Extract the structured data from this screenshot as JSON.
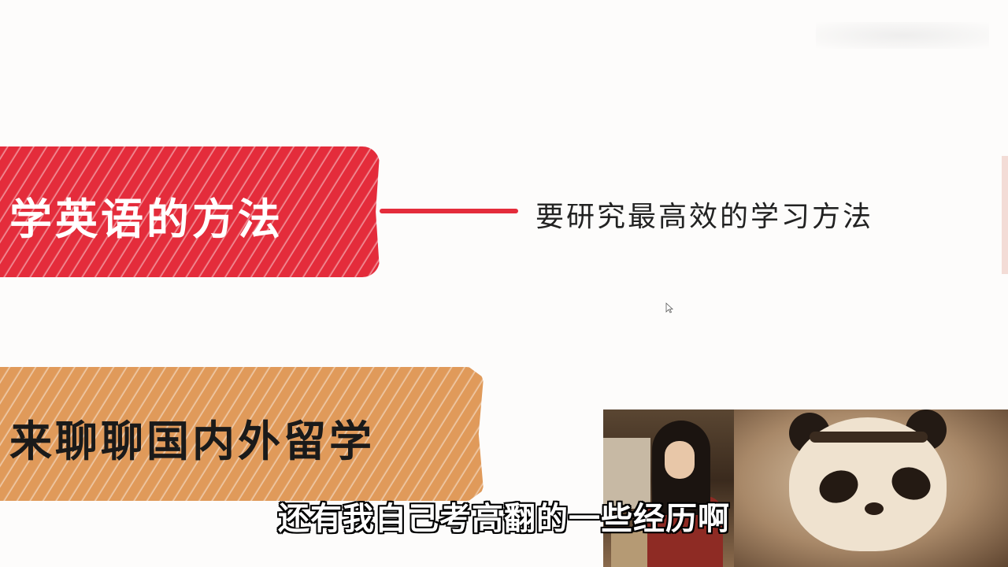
{
  "slide": {
    "topic_primary": "学英语的方法",
    "topic_primary_color": "#e42c3b",
    "branch_note": "要研究最高效的学习方法",
    "topic_secondary": "来聊聊国内外留学",
    "topic_secondary_color": "#e09a5a"
  },
  "video_overlay": {
    "subtitle": "还有我自己考高翻的一些经历啊"
  },
  "icons": {
    "cursor": "mouse-pointer-icon"
  }
}
